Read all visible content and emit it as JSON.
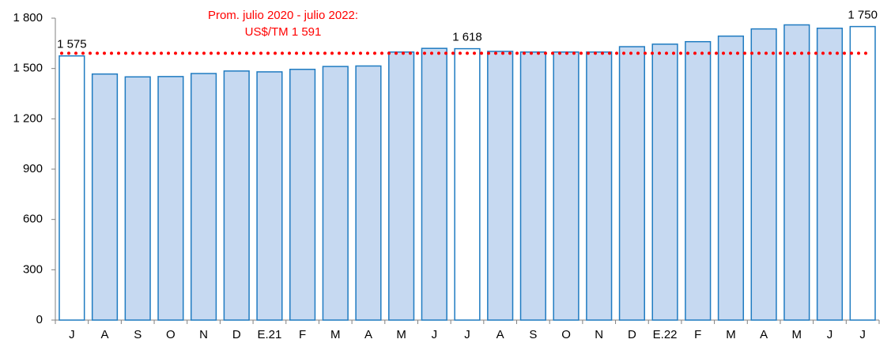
{
  "chart_data": {
    "type": "bar",
    "categories": [
      "J",
      "A",
      "S",
      "O",
      "N",
      "D",
      "E.21",
      "F",
      "M",
      "A",
      "M",
      "J",
      "J",
      "A",
      "S",
      "O",
      "N",
      "D",
      "E.22",
      "F",
      "M",
      "A",
      "M",
      "J",
      "J"
    ],
    "values": [
      1575,
      1467,
      1450,
      1452,
      1470,
      1485,
      1480,
      1495,
      1512,
      1515,
      1598,
      1620,
      1618,
      1602,
      1598,
      1598,
      1598,
      1630,
      1645,
      1660,
      1693,
      1736,
      1760,
      1740,
      1750
    ],
    "value_labels": [
      "1 575",
      null,
      null,
      null,
      null,
      null,
      null,
      null,
      null,
      null,
      null,
      null,
      "1 618",
      null,
      null,
      null,
      null,
      null,
      null,
      null,
      null,
      null,
      null,
      null,
      "1 750"
    ],
    "colors": [
      "#ffffff",
      "#c6d9f1",
      "#c6d9f1",
      "#c6d9f1",
      "#c6d9f1",
      "#c6d9f1",
      "#c6d9f1",
      "#c6d9f1",
      "#c6d9f1",
      "#c6d9f1",
      "#c6d9f1",
      "#c6d9f1",
      "#ffffff",
      "#c6d9f1",
      "#c6d9f1",
      "#c6d9f1",
      "#c6d9f1",
      "#c6d9f1",
      "#c6d9f1",
      "#c6d9f1",
      "#c6d9f1",
      "#c6d9f1",
      "#c6d9f1",
      "#c6d9f1",
      "#ffffff"
    ],
    "edge_color": "#1f7bc1",
    "ylim": [
      0,
      1800
    ],
    "yticks": [
      0,
      300,
      600,
      900,
      {
        "value": 1200,
        "label": "1 200"
      },
      {
        "value": 1500,
        "label": "1 500"
      },
      {
        "value": 1800,
        "label": "1 800"
      }
    ],
    "grid": false,
    "reference_line": {
      "value": 1591,
      "color": "#ff0000",
      "label": [
        "Prom. julio 2020 - julio 2022:",
        "US$/TM 1 591"
      ]
    }
  }
}
